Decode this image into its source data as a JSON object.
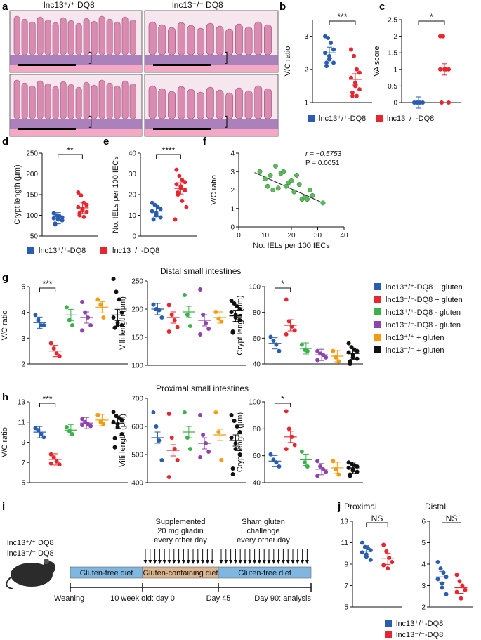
{
  "colors": {
    "blue": "#2a5db0",
    "red": "#e8262f",
    "green": "#3cb04a",
    "purple": "#8e44ad",
    "orange": "#f39c12",
    "black": "#111111",
    "olive": "#5cb85c",
    "diet_blue": "#7fb7e0",
    "diet_tan": "#d9b48f",
    "histo_pink": "#d98bb0"
  },
  "panel_letters": [
    "a",
    "b",
    "c",
    "d",
    "e",
    "f",
    "g",
    "h",
    "i",
    "j"
  ],
  "panel_a": {
    "col1_label": "lnc13⁺/⁺ DQ8",
    "col2_label": "lnc13⁻/⁻ DQ8"
  },
  "legend_two": {
    "wt": "lnc13⁺/⁺-DQ8",
    "ko": "lnc13⁻/⁻-DQ8"
  },
  "legend_six": [
    {
      "label": "lnc13⁺/⁺-DQ8 + gluten",
      "color": "blue"
    },
    {
      "label": "lnc13⁻/⁻-DQ8 + gluten",
      "color": "red"
    },
    {
      "label": "lnc13⁺/⁺-DQ8 - gluten",
      "color": "green"
    },
    {
      "label": "lnc13⁻/⁻-DQ8 - gluten",
      "color": "purple"
    },
    {
      "label": "lnc13⁺/⁺ + gluten",
      "color": "orange"
    },
    {
      "label": "lnc13⁻/⁻ + gluten",
      "color": "black"
    }
  ],
  "titles": {
    "g": "Distal small intestines",
    "h": "Proximal small intestines",
    "j_left": "Proximal",
    "j_right": "Distal"
  },
  "panel_i": {
    "mouse_labels": [
      "lnc13⁺/⁺ DQ8",
      "lnc13⁻/⁻ DQ8"
    ],
    "diets": [
      "Gluten-free diet",
      "Gluten-containing diet",
      "Gluten-free diet"
    ],
    "top_notes": [
      [
        "Supplemented",
        "20 mg gliadin",
        "every other day"
      ],
      [
        "Sham gluten",
        "challenge",
        "every other day"
      ]
    ],
    "timeline": [
      "Weaning",
      "10 week old: day 0",
      "Day 45",
      "Day 90: analysis"
    ]
  },
  "chart_data": [
    {
      "panel": "b",
      "type": "scatter",
      "ylabel": "V/C ratio",
      "ylim": [
        1,
        3.5
      ],
      "yticks": [
        1,
        2,
        3
      ],
      "significance": "***",
      "groups": [
        {
          "color": "blue",
          "mean": 2.5,
          "values": [
            3.0,
            2.95,
            2.8,
            2.6,
            2.5,
            2.4,
            2.3,
            2.2,
            2.2,
            2.1
          ]
        },
        {
          "color": "red",
          "mean": 1.7,
          "values": [
            2.6,
            2.4,
            2.0,
            1.9,
            1.75,
            1.6,
            1.5,
            1.4,
            1.3,
            1.2,
            1.2
          ]
        }
      ]
    },
    {
      "panel": "c",
      "type": "scatter",
      "ylabel": "VA score",
      "ylim": [
        0,
        2.5
      ],
      "yticks": [
        0,
        0.5,
        1.0,
        1.5,
        2.0,
        2.5
      ],
      "significance": "*",
      "groups": [
        {
          "color": "blue",
          "mean": 0,
          "values": [
            0,
            0,
            0,
            0,
            0
          ]
        },
        {
          "color": "red",
          "mean": 1.0,
          "values": [
            2.0,
            2.0,
            1.0,
            1.0,
            1.0,
            1.0,
            1.0,
            0,
            0
          ]
        }
      ]
    },
    {
      "panel": "d",
      "type": "scatter",
      "ylabel": "Crypt length (μm)",
      "ylim": [
        50,
        250
      ],
      "yticks": [
        50,
        100,
        150,
        200,
        250
      ],
      "significance": "**",
      "groups": [
        {
          "color": "blue",
          "mean": 93,
          "values": [
            105,
            100,
            98,
            95,
            93,
            92,
            90,
            88,
            80,
            78
          ]
        },
        {
          "color": "red",
          "mean": 118,
          "values": [
            155,
            148,
            130,
            125,
            120,
            115,
            112,
            108,
            105,
            100,
            96
          ]
        }
      ]
    },
    {
      "panel": "e",
      "type": "scatter",
      "ylabel": "No. IELs per 100 IECs",
      "ylim": [
        0,
        40
      ],
      "yticks": [
        0,
        10,
        20,
        30,
        40
      ],
      "significance": "****",
      "groups": [
        {
          "color": "blue",
          "mean": 12,
          "values": [
            16,
            15,
            14,
            13,
            12,
            11,
            10,
            9,
            8
          ]
        },
        {
          "color": "red",
          "mean": 23,
          "values": [
            32,
            29,
            27,
            26,
            25,
            24,
            23,
            22,
            21,
            20,
            17,
            14,
            8
          ]
        }
      ]
    },
    {
      "panel": "f",
      "type": "scatter",
      "xlabel": "No. IELs per 100 IECs",
      "ylabel": "V/C ratio",
      "xlim": [
        0,
        40
      ],
      "ylim": [
        0,
        4
      ],
      "xticks": [
        0,
        10,
        20,
        30,
        40
      ],
      "yticks": [
        0,
        1,
        2,
        3,
        4
      ],
      "annotations": [
        "r = −0.5753",
        "P = 0.0051"
      ],
      "points": [
        [
          8,
          3.0
        ],
        [
          10,
          2.6
        ],
        [
          11,
          2.2
        ],
        [
          12,
          2.8
        ],
        [
          13,
          2.0
        ],
        [
          14,
          3.3
        ],
        [
          15,
          2.1
        ],
        [
          16,
          2.9
        ],
        [
          17,
          3.0
        ],
        [
          18,
          2.2
        ],
        [
          19,
          2.4
        ],
        [
          20,
          2.5
        ],
        [
          21,
          1.9
        ],
        [
          22,
          2.8
        ],
        [
          23,
          2.3
        ],
        [
          24,
          1.5
        ],
        [
          25,
          1.6
        ],
        [
          26,
          1.5
        ],
        [
          27,
          2.0
        ],
        [
          28,
          1.7
        ],
        [
          32,
          1.3
        ]
      ],
      "trend": [
        [
          6,
          2.95
        ],
        [
          32,
          1.3
        ]
      ]
    },
    {
      "panel": "g-vc",
      "type": "scatter",
      "ylabel": "V/C ratio",
      "ylim": [
        2,
        5
      ],
      "yticks": [
        2,
        3,
        4,
        5
      ],
      "significance": "***",
      "groups": [
        {
          "color": "blue",
          "mean": 3.6,
          "values": [
            3.9,
            3.7,
            3.5,
            3.5
          ]
        },
        {
          "color": "red",
          "mean": 2.5,
          "values": [
            2.8,
            2.6,
            2.4,
            2.3
          ]
        },
        {
          "color": "green",
          "mean": 3.9,
          "values": [
            4.2,
            3.7,
            3.5
          ]
        },
        {
          "color": "purple",
          "mean": 3.8,
          "values": [
            4.4,
            4.0,
            3.8,
            3.5,
            3.3
          ]
        },
        {
          "color": "orange",
          "mean": 4.2,
          "values": [
            4.5,
            4.3,
            3.8
          ]
        },
        {
          "color": "black",
          "mean": 3.9,
          "values": [
            5.3,
            4.8,
            4.5,
            4.0,
            3.8,
            3.6,
            3.5,
            3.5,
            3.4,
            3.4
          ]
        }
      ]
    },
    {
      "panel": "g-villi",
      "type": "scatter",
      "ylabel": "Villi length (μm)",
      "ylim": [
        100,
        250
      ],
      "yticks": [
        100,
        150,
        200,
        250
      ],
      "groups": [
        {
          "color": "blue",
          "mean": 200,
          "values": [
            208,
            200,
            198,
            185
          ]
        },
        {
          "color": "red",
          "mean": 185,
          "values": [
            207,
            190,
            180,
            168,
            160
          ]
        },
        {
          "color": "green",
          "mean": 195,
          "values": [
            225,
            190,
            170
          ]
        },
        {
          "color": "purple",
          "mean": 180,
          "values": [
            235,
            190,
            175,
            165,
            155
          ]
        },
        {
          "color": "orange",
          "mean": 185,
          "values": [
            195,
            183,
            178
          ]
        },
        {
          "color": "black",
          "mean": 188,
          "values": [
            215,
            210,
            205,
            200,
            195,
            190,
            185,
            180,
            160,
            158
          ]
        }
      ]
    },
    {
      "panel": "g-crypt",
      "type": "scatter",
      "ylabel": "Crypt length (μm)",
      "ylim": [
        40,
        100
      ],
      "yticks": [
        40,
        60,
        80,
        100
      ],
      "significance": "*",
      "groups": [
        {
          "color": "blue",
          "mean": 56,
          "values": [
            61,
            58,
            55,
            50
          ]
        },
        {
          "color": "red",
          "mean": 70,
          "values": [
            90,
            73,
            69,
            66,
            63
          ]
        },
        {
          "color": "green",
          "mean": 52,
          "values": [
            55,
            51,
            50
          ]
        },
        {
          "color": "purple",
          "mean": 47,
          "values": [
            50,
            48,
            47,
            45,
            43
          ]
        },
        {
          "color": "orange",
          "mean": 46,
          "values": [
            50,
            45,
            42
          ]
        },
        {
          "color": "black",
          "mean": 48,
          "values": [
            56,
            53,
            51,
            50,
            49,
            47,
            45,
            44,
            42,
            40
          ]
        }
      ]
    },
    {
      "panel": "h-vc",
      "type": "scatter",
      "ylabel": "V/C ratio",
      "ylim": [
        5,
        13
      ],
      "yticks": [
        5,
        7,
        9,
        11,
        13
      ],
      "significance": "***",
      "groups": [
        {
          "color": "blue",
          "mean": 10.0,
          "values": [
            10.4,
            10.2,
            9.8,
            9.5
          ]
        },
        {
          "color": "red",
          "mean": 7.3,
          "values": [
            7.8,
            7.5,
            7.1,
            6.8,
            6.9
          ]
        },
        {
          "color": "green",
          "mean": 10.2,
          "values": [
            10.5,
            10.1,
            9.8
          ]
        },
        {
          "color": "purple",
          "mean": 10.9,
          "values": [
            11.3,
            11.0,
            10.8,
            10.6,
            10.7
          ]
        },
        {
          "color": "orange",
          "mean": 11.2,
          "values": [
            11.7,
            11.0,
            10.8
          ]
        },
        {
          "color": "black",
          "mean": 10.9,
          "values": [
            12.0,
            11.6,
            11.4,
            11.2,
            11.0,
            10.8,
            10.5,
            9.8,
            9.4,
            8.5
          ]
        }
      ]
    },
    {
      "panel": "h-villi",
      "type": "scatter",
      "ylabel": "Villi length (μm)",
      "ylim": [
        400,
        700
      ],
      "yticks": [
        400,
        500,
        600,
        700
      ],
      "groups": [
        {
          "color": "blue",
          "mean": 560,
          "values": [
            650,
            600,
            550,
            480
          ]
        },
        {
          "color": "red",
          "mean": 515,
          "values": [
            645,
            560,
            520,
            480,
            420
          ]
        },
        {
          "color": "green",
          "mean": 580,
          "values": [
            650,
            560,
            520
          ]
        },
        {
          "color": "purple",
          "mean": 540,
          "values": [
            640,
            570,
            540,
            510,
            490
          ]
        },
        {
          "color": "orange",
          "mean": 570,
          "values": [
            650,
            580,
            480
          ]
        },
        {
          "color": "black",
          "mean": 550,
          "values": [
            640,
            620,
            600,
            580,
            560,
            540,
            520,
            500,
            450,
            430
          ]
        }
      ]
    },
    {
      "panel": "h-crypt",
      "type": "scatter",
      "ylabel": "Crypt length (μm)",
      "ylim": [
        40,
        100
      ],
      "yticks": [
        40,
        60,
        80,
        100
      ],
      "significance": "*",
      "groups": [
        {
          "color": "blue",
          "mean": 56,
          "values": [
            61,
            57,
            55,
            52
          ]
        },
        {
          "color": "red",
          "mean": 74,
          "values": [
            93,
            80,
            74,
            68,
            65
          ]
        },
        {
          "color": "green",
          "mean": 57,
          "values": [
            63,
            55,
            52
          ]
        },
        {
          "color": "purple",
          "mean": 50,
          "values": [
            56,
            52,
            50,
            48,
            45
          ]
        },
        {
          "color": "orange",
          "mean": 51,
          "values": [
            56,
            50,
            46
          ]
        },
        {
          "color": "black",
          "mean": 51,
          "values": [
            55,
            54,
            53,
            52,
            51,
            50,
            49,
            48,
            46,
            45
          ]
        }
      ]
    },
    {
      "panel": "j-prox",
      "type": "scatter",
      "ylim": [
        5,
        13
      ],
      "yticks": [
        5,
        7,
        9,
        11,
        13
      ],
      "significance": "NS",
      "groups": [
        {
          "color": "blue",
          "mean": 10.2,
          "values": [
            11.0,
            10.6,
            10.5,
            10.3,
            10.1,
            9.9,
            9.7,
            9.4
          ]
        },
        {
          "color": "red",
          "mean": 9.5,
          "values": [
            10.8,
            10.2,
            9.6,
            9.2,
            8.9,
            8.6
          ]
        }
      ]
    },
    {
      "panel": "j-dist",
      "type": "scatter",
      "ylim": [
        2,
        6
      ],
      "yticks": [
        2,
        3,
        4,
        5,
        6
      ],
      "significance": "NS",
      "groups": [
        {
          "color": "blue",
          "mean": 3.4,
          "values": [
            4.1,
            3.8,
            3.6,
            3.4,
            3.3,
            3.1,
            2.9,
            2.6
          ]
        },
        {
          "color": "red",
          "mean": 2.9,
          "values": [
            3.5,
            3.2,
            3.0,
            2.8,
            2.7,
            2.4
          ]
        }
      ]
    }
  ]
}
